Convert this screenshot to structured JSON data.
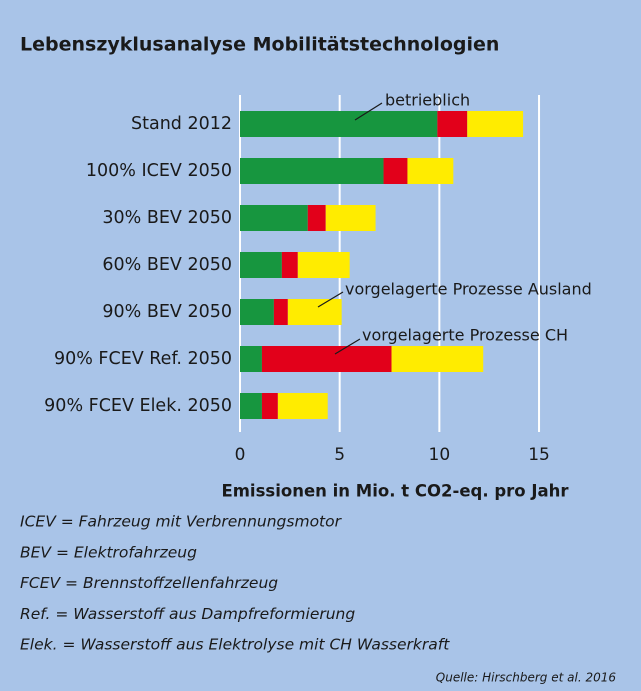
{
  "chart_data": {
    "type": "stacked-bar-horizontal",
    "title": "Lebenszyklusanalyse Mobilitätstechnologien",
    "x_label": "Emissionen in Mio. t CO2-eq. pro Jahr",
    "categories": [
      "Stand 2012",
      "100% ICEV 2050",
      "30% BEV 2050",
      "60% BEV 2050",
      "90% BEV 2050",
      "90% FCEV Ref. 2050",
      "90% FCEV Elek. 2050"
    ],
    "series": [
      {
        "name": "betrieblich",
        "color": "#17963f",
        "values": [
          9.9,
          7.2,
          3.4,
          2.1,
          1.7,
          1.1,
          1.1
        ]
      },
      {
        "name": "vorgelagerte Prozesse CH",
        "color": "#e2001a",
        "values": [
          1.5,
          1.2,
          0.9,
          0.8,
          0.7,
          6.5,
          0.8
        ]
      },
      {
        "name": "vorgelagerte Prozesse Ausland",
        "color": "#ffec00",
        "values": [
          2.8,
          2.3,
          2.5,
          2.6,
          2.7,
          4.6,
          2.5
        ]
      }
    ],
    "xlim": [
      0,
      15.5
    ],
    "xticks": [
      0,
      5,
      10,
      15
    ],
    "grid": true,
    "notes": [
      "ICEV = Fahrzeug mit Verbrennungsmotor",
      "BEV = Elektrofahrzeug",
      "FCEV = Brennstoffzellenfahrzeug",
      "Ref. = Wasserstoff aus Dampfreformierung",
      "Elek. = Wasserstoff aus Elektrolyse mit CH Wasserkraft"
    ],
    "source": "Quelle: Hirschberg et al. 2016"
  }
}
